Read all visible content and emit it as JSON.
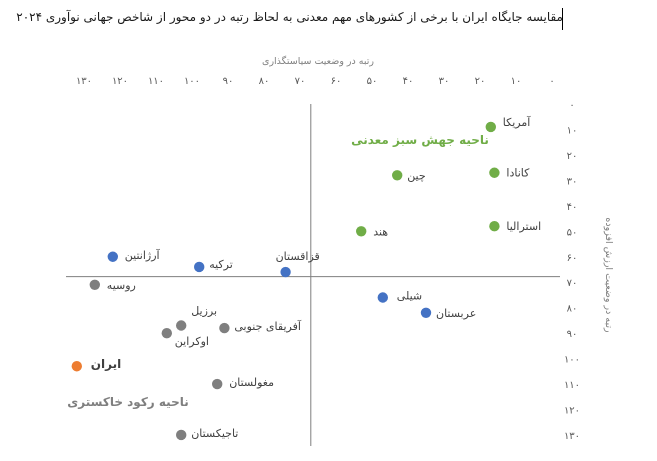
{
  "title": "مقایسه جایگاه ایران با برخی از کشورهای مهم معدنی به لحاظ رتبه در دو محور از شاخص جهانی نوآوری ۲۰۲۴",
  "colors": {
    "green": "#70ad47",
    "blue": "#4472c4",
    "gray": "#7f7f7f",
    "orange": "#ed7d31",
    "axis": "#a6a6a6",
    "divider": "#7f7f7f"
  },
  "chart_data": {
    "type": "scatter",
    "title": "مقایسه جایگاه ایران با برخی از کشورهای مهم معدنی به لحاظ رتبه در دو محور از شاخص جهانی نوآوری ۲۰۲۴",
    "xlabel": "رتبه در وضعیت سیاستگذاری",
    "ylabel": "رتبه در وضعیت ارزش افزوده",
    "xlim": [
      0,
      130
    ],
    "ylim": [
      0,
      130
    ],
    "x_reversed": true,
    "y_reversed": true,
    "x_ticks": [
      0,
      10,
      20,
      30,
      40,
      50,
      60,
      70,
      80,
      90,
      100,
      110,
      120,
      130
    ],
    "y_ticks": [
      0,
      10,
      20,
      30,
      40,
      50,
      60,
      70,
      80,
      90,
      100,
      110,
      120,
      130
    ],
    "x_tick_labels": [
      "0",
      "10",
      "20",
      "30",
      "40",
      "50",
      "60",
      "70",
      "80",
      "90",
      "100",
      "110",
      "120",
      "130"
    ],
    "y_tick_labels": [
      "0",
      "10",
      "20",
      "30",
      "40",
      "50",
      "60",
      "70",
      "80",
      "90",
      "100",
      "110",
      "120",
      "130"
    ],
    "x_axis_position": "top",
    "y_axis_position": "right",
    "divider": {
      "x": 67,
      "y": 67
    },
    "points": [
      {
        "label": "آمریکا",
        "x": 17,
        "y": 9,
        "group": "green"
      },
      {
        "label": "کانادا",
        "x": 16,
        "y": 27,
        "group": "green"
      },
      {
        "label": "چین",
        "x": 43,
        "y": 28,
        "group": "green"
      },
      {
        "label": "استرالیا",
        "x": 16,
        "y": 48,
        "group": "green"
      },
      {
        "label": "هند",
        "x": 53,
        "y": 50,
        "group": "green"
      },
      {
        "label": "قزاقستان",
        "x": 74,
        "y": 66,
        "group": "blue"
      },
      {
        "label": "ترکیه",
        "x": 98,
        "y": 64,
        "group": "blue"
      },
      {
        "label": "آرژانتین",
        "x": 122,
        "y": 60,
        "group": "blue"
      },
      {
        "label": "شیلی",
        "x": 47,
        "y": 76,
        "group": "blue"
      },
      {
        "label": "عربستان",
        "x": 35,
        "y": 82,
        "group": "blue"
      },
      {
        "label": "روسیه",
        "x": 127,
        "y": 71,
        "group": "gray"
      },
      {
        "label": "برزیل",
        "x": 103,
        "y": 87,
        "group": "gray"
      },
      {
        "label": "آفریقای جنوبی",
        "x": 91,
        "y": 88,
        "group": "gray"
      },
      {
        "label": "اوکراین",
        "x": 107,
        "y": 90,
        "group": "gray"
      },
      {
        "label": "مغولستان",
        "x": 93,
        "y": 110,
        "group": "gray"
      },
      {
        "label": "تاجیکستان",
        "x": 103,
        "y": 130,
        "group": "gray"
      },
      {
        "label": "ایران",
        "x": 132,
        "y": 103,
        "group": "orange"
      }
    ],
    "regions": [
      {
        "label": "ناحیه جهش سبز معدنی",
        "color": "green"
      },
      {
        "label": "ناحیه رکود خاکستری",
        "color": "gray"
      }
    ],
    "grid": false
  }
}
